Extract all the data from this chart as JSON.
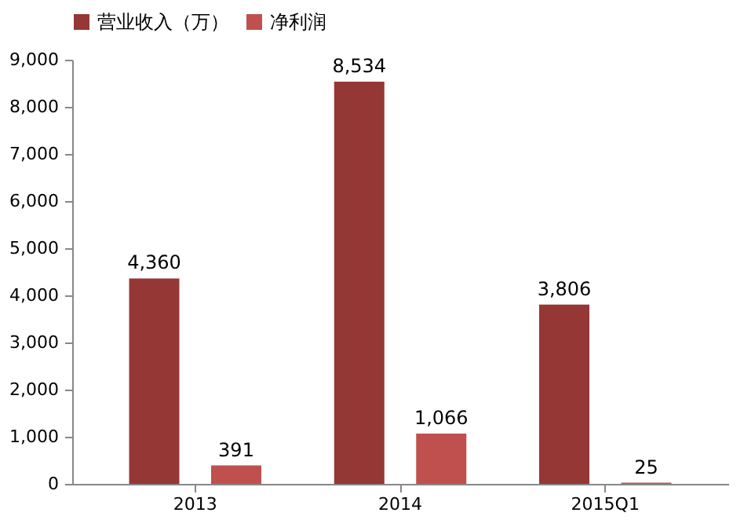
{
  "chart_data": {
    "type": "bar",
    "categories": [
      "2013",
      "2014",
      "2015Q1"
    ],
    "series": [
      {
        "name": "营业收入（万）",
        "color": "#953735",
        "values": [
          4360,
          8534,
          3806
        ],
        "value_labels": [
          "4,360",
          "8,534",
          "3,806"
        ]
      },
      {
        "name": "净利润",
        "color": "#c0504d",
        "values": [
          391,
          1066,
          25
        ],
        "value_labels": [
          "391",
          "1,066",
          "25"
        ]
      }
    ],
    "ylim": [
      0,
      9000
    ],
    "yticks": [
      {
        "value": 0,
        "label": "0"
      },
      {
        "value": 1000,
        "label": "1,000"
      },
      {
        "value": 2000,
        "label": "2,000"
      },
      {
        "value": 3000,
        "label": "3,000"
      },
      {
        "value": 4000,
        "label": "4,000"
      },
      {
        "value": 5000,
        "label": "5,000"
      },
      {
        "value": 6000,
        "label": "6,000"
      },
      {
        "value": 7000,
        "label": "7,000"
      },
      {
        "value": 8000,
        "label": "8,000"
      },
      {
        "value": 9000,
        "label": "9,000"
      }
    ],
    "grid": false,
    "legend": "top"
  }
}
